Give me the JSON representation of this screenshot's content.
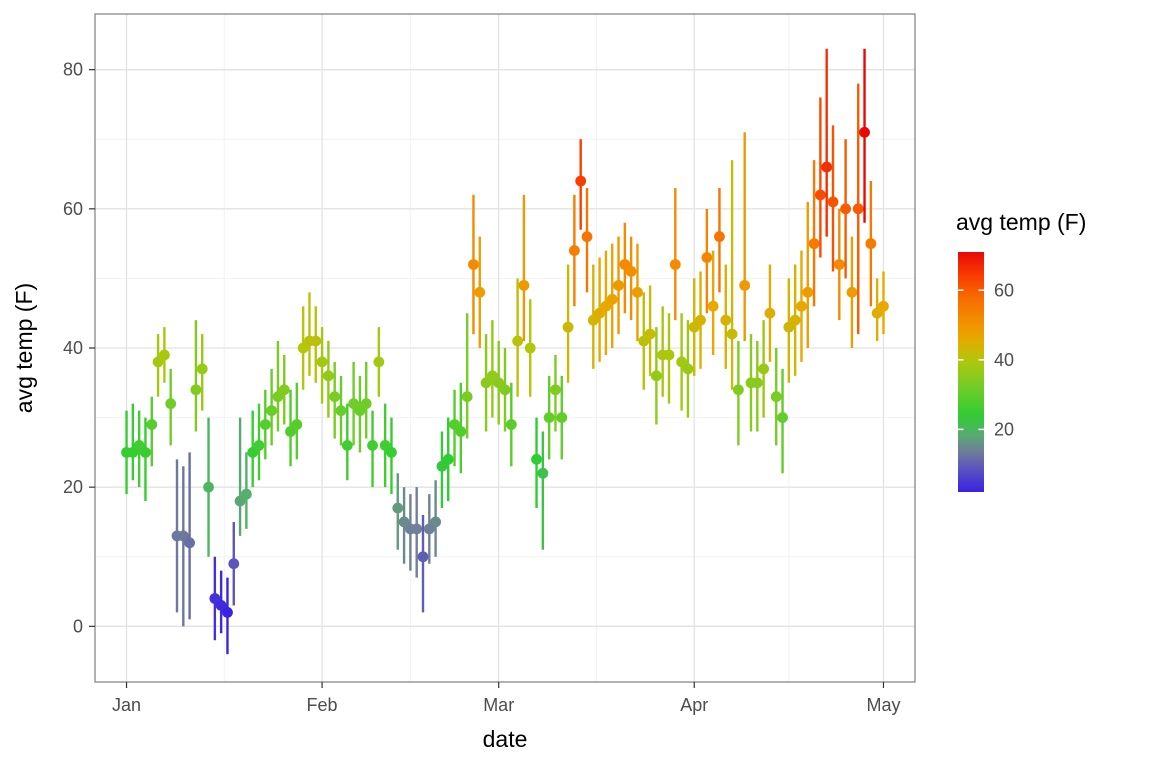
{
  "figure": {
    "xlabel": "date",
    "ylabel": "avg temp (F)",
    "legend_title": "avg temp (F)"
  },
  "chart_data": {
    "type": "scatter",
    "subtype": "pointrange",
    "title": "",
    "xlabel": "date",
    "ylabel": "avg temp (F)",
    "x_unit": "days since Jan 1",
    "xlim": [
      -5,
      125
    ],
    "ylim": [
      -8,
      88
    ],
    "grid": "major+minor",
    "x_ticks": [
      {
        "day": 0,
        "label": "Jan"
      },
      {
        "day": 31,
        "label": "Feb"
      },
      {
        "day": 59,
        "label": "Mar"
      },
      {
        "day": 90,
        "label": "Apr"
      },
      {
        "day": 120,
        "label": "May"
      }
    ],
    "x_minor_ticks": [
      15.5,
      45,
      74.5,
      105
    ],
    "y_ticks": [
      0,
      20,
      40,
      60,
      80
    ],
    "y_minor_ticks": [
      -10,
      10,
      30,
      50,
      70
    ],
    "legend": {
      "title": "avg temp (F)",
      "type": "colorbar",
      "position": "right",
      "ticks": [
        20,
        40,
        60
      ],
      "domain": [
        2,
        71
      ]
    },
    "color_stops": [
      [
        2,
        "#3a22e2"
      ],
      [
        9,
        "#5c56bc"
      ],
      [
        14,
        "#708096"
      ],
      [
        19,
        "#54b06c"
      ],
      [
        24,
        "#2ecd32"
      ],
      [
        32,
        "#70cd28"
      ],
      [
        40,
        "#b2c60a"
      ],
      [
        46,
        "#e8a800"
      ],
      [
        52,
        "#f48a00"
      ],
      [
        58,
        "#f76a00"
      ],
      [
        64,
        "#f93e00"
      ],
      [
        71,
        "#e80808"
      ]
    ],
    "points_format": [
      "day_offset_from_jan1",
      "mean_temp_f",
      "low_f",
      "high_f"
    ],
    "points": [
      [
        0,
        25,
        19,
        31
      ],
      [
        1,
        25,
        21,
        32
      ],
      [
        2,
        26,
        20,
        31
      ],
      [
        3,
        25,
        18,
        30
      ],
      [
        4,
        29,
        23,
        33
      ],
      [
        5,
        38,
        33,
        42
      ],
      [
        6,
        39,
        35,
        43
      ],
      [
        7,
        32,
        26,
        37
      ],
      [
        8,
        13,
        2,
        24
      ],
      [
        9,
        13,
        0,
        23
      ],
      [
        10,
        12,
        1,
        25
      ],
      [
        11,
        34,
        28,
        44
      ],
      [
        12,
        37,
        31,
        42
      ],
      [
        13,
        20,
        10,
        30
      ],
      [
        14,
        4,
        -2,
        10
      ],
      [
        15,
        3,
        -1,
        8
      ],
      [
        16,
        2,
        -4,
        7
      ],
      [
        17,
        9,
        3,
        15
      ],
      [
        18,
        18,
        13,
        30
      ],
      [
        19,
        19,
        14,
        25
      ],
      [
        20,
        25,
        20,
        31
      ],
      [
        21,
        26,
        21,
        32
      ],
      [
        22,
        29,
        24,
        34
      ],
      [
        23,
        31,
        26,
        37
      ],
      [
        24,
        33,
        28,
        41
      ],
      [
        25,
        34,
        29,
        39
      ],
      [
        26,
        28,
        23,
        34
      ],
      [
        27,
        29,
        24,
        35
      ],
      [
        28,
        40,
        34,
        46
      ],
      [
        29,
        41,
        36,
        48
      ],
      [
        30,
        41,
        35,
        46
      ],
      [
        31,
        38,
        32,
        43
      ],
      [
        32,
        36,
        30,
        41
      ],
      [
        33,
        33,
        27,
        38
      ],
      [
        34,
        31,
        26,
        36
      ],
      [
        35,
        26,
        21,
        32
      ],
      [
        36,
        32,
        26,
        38
      ],
      [
        37,
        31,
        25,
        36
      ],
      [
        38,
        32,
        27,
        38
      ],
      [
        39,
        26,
        20,
        31
      ],
      [
        40,
        38,
        33,
        43
      ],
      [
        41,
        26,
        20,
        32
      ],
      [
        42,
        25,
        19,
        30
      ],
      [
        43,
        17,
        11,
        22
      ],
      [
        44,
        15,
        9,
        20
      ],
      [
        45,
        14,
        8,
        19
      ],
      [
        46,
        14,
        7,
        20
      ],
      [
        47,
        10,
        2,
        16
      ],
      [
        48,
        14,
        9,
        19
      ],
      [
        49,
        15,
        10,
        21
      ],
      [
        50,
        23,
        17,
        28
      ],
      [
        51,
        24,
        18,
        30
      ],
      [
        52,
        29,
        23,
        34
      ],
      [
        53,
        28,
        22,
        35
      ],
      [
        54,
        33,
        27,
        45
      ],
      [
        55,
        52,
        42,
        62
      ],
      [
        56,
        48,
        40,
        56
      ],
      [
        57,
        35,
        28,
        42
      ],
      [
        58,
        36,
        30,
        44
      ],
      [
        59,
        35,
        29,
        41
      ],
      [
        60,
        34,
        28,
        40
      ],
      [
        61,
        29,
        23,
        35
      ],
      [
        62,
        41,
        33,
        50
      ],
      [
        63,
        49,
        41,
        62
      ],
      [
        64,
        40,
        33,
        47
      ],
      [
        65,
        24,
        17,
        30
      ],
      [
        66,
        22,
        11,
        28
      ],
      [
        67,
        30,
        24,
        36
      ],
      [
        68,
        34,
        28,
        39
      ],
      [
        69,
        30,
        24,
        36
      ],
      [
        70,
        43,
        35,
        52
      ],
      [
        71,
        54,
        46,
        62
      ],
      [
        72,
        64,
        57,
        70
      ],
      [
        73,
        56,
        48,
        63
      ],
      [
        74,
        44,
        37,
        52
      ],
      [
        75,
        45,
        38,
        53
      ],
      [
        76,
        46,
        39,
        54
      ],
      [
        77,
        47,
        40,
        55
      ],
      [
        78,
        49,
        42,
        56
      ],
      [
        79,
        52,
        45,
        58
      ],
      [
        80,
        51,
        44,
        56
      ],
      [
        81,
        48,
        41,
        55
      ],
      [
        82,
        41,
        34,
        48
      ],
      [
        83,
        42,
        36,
        49
      ],
      [
        84,
        36,
        29,
        43
      ],
      [
        85,
        39,
        33,
        46
      ],
      [
        86,
        39,
        32,
        45
      ],
      [
        87,
        52,
        44,
        63
      ],
      [
        88,
        38,
        31,
        45
      ],
      [
        89,
        37,
        30,
        44
      ],
      [
        90,
        43,
        36,
        50
      ],
      [
        91,
        44,
        37,
        51
      ],
      [
        92,
        53,
        45,
        60
      ],
      [
        93,
        46,
        39,
        54
      ],
      [
        94,
        56,
        48,
        63
      ],
      [
        95,
        44,
        37,
        52
      ],
      [
        96,
        42,
        34,
        67
      ],
      [
        97,
        34,
        26,
        41
      ],
      [
        98,
        49,
        41,
        71
      ],
      [
        99,
        35,
        28,
        42
      ],
      [
        100,
        35,
        28,
        41
      ],
      [
        101,
        37,
        30,
        44
      ],
      [
        102,
        45,
        38,
        52
      ],
      [
        103,
        33,
        26,
        40
      ],
      [
        104,
        30,
        22,
        37
      ],
      [
        105,
        43,
        35,
        50
      ],
      [
        106,
        44,
        36,
        52
      ],
      [
        107,
        46,
        38,
        54
      ],
      [
        108,
        48,
        40,
        61
      ],
      [
        109,
        55,
        46,
        67
      ],
      [
        110,
        62,
        53,
        76
      ],
      [
        111,
        66,
        56,
        83
      ],
      [
        112,
        61,
        51,
        72
      ],
      [
        113,
        52,
        44,
        60
      ],
      [
        114,
        60,
        50,
        70
      ],
      [
        115,
        48,
        40,
        56
      ],
      [
        116,
        60,
        42,
        78
      ],
      [
        117,
        71,
        58,
        83
      ],
      [
        118,
        55,
        46,
        64
      ],
      [
        119,
        45,
        41,
        50
      ],
      [
        120,
        46,
        42,
        51
      ]
    ]
  }
}
